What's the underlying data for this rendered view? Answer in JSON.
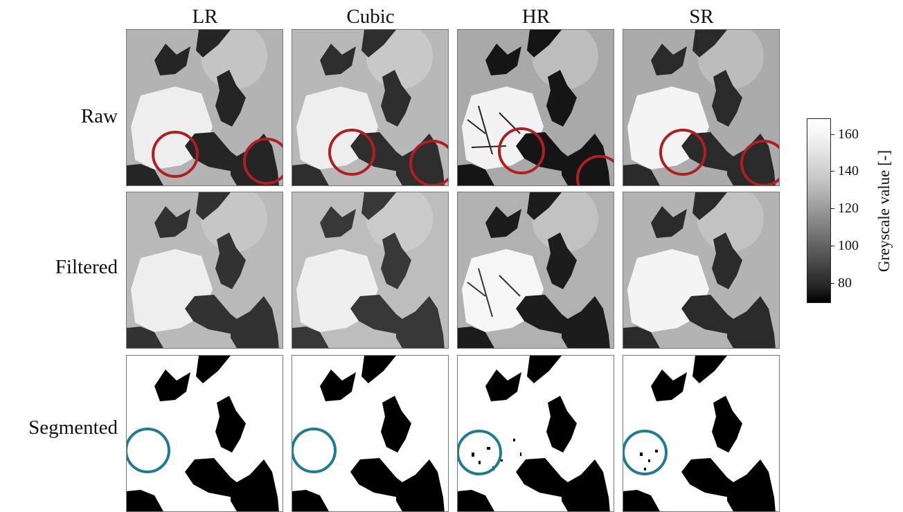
{
  "columns": [
    "LR",
    "Cubic",
    "HR",
    "SR"
  ],
  "rows": [
    "Raw",
    "Filtered",
    "Segmented"
  ],
  "colorbar": {
    "label": "Greyscale value [-]",
    "ticks": [
      "160",
      "140",
      "120",
      "100",
      "80"
    ],
    "range": [
      70,
      170
    ],
    "colormap": "grayscale"
  },
  "annotations": {
    "raw_row_circle_color": "#b01e22",
    "segmented_row_circle_color": "#1f7b94"
  }
}
